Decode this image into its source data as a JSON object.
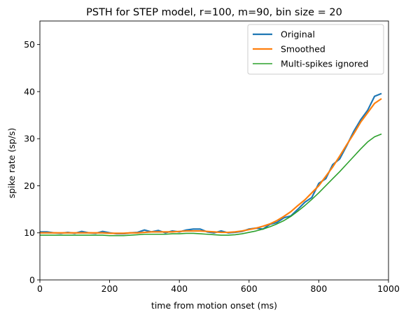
{
  "chart_data": {
    "type": "line",
    "title": "PSTH for STEP model, r=100, m=90, bin size = 20",
    "xlabel": "time from motion onset (ms)",
    "ylabel": "spike rate (sp/s)",
    "xlim": [
      0,
      1000
    ],
    "ylim": [
      0,
      55
    ],
    "xticks": [
      0,
      200,
      400,
      600,
      800,
      1000
    ],
    "yticks": [
      0,
      10,
      20,
      30,
      40,
      50
    ],
    "grid": false,
    "legend_position": "top-right",
    "x": [
      0,
      20,
      40,
      60,
      80,
      100,
      120,
      140,
      160,
      180,
      200,
      220,
      240,
      260,
      280,
      300,
      320,
      340,
      360,
      380,
      400,
      420,
      440,
      460,
      480,
      500,
      520,
      540,
      560,
      580,
      600,
      620,
      640,
      660,
      680,
      700,
      720,
      740,
      760,
      780,
      800,
      820,
      840,
      860,
      880,
      900,
      920,
      940,
      960,
      980
    ],
    "series": [
      {
        "name": "Original",
        "color": "#1f77b4",
        "values": [
          10.2,
          10.2,
          10.0,
          9.9,
          10.1,
          9.9,
          10.3,
          10.0,
          9.9,
          10.3,
          10.0,
          9.8,
          9.8,
          10.0,
          10.1,
          10.6,
          10.2,
          10.5,
          10.0,
          10.4,
          10.2,
          10.6,
          10.8,
          10.8,
          10.2,
          10.0,
          10.4,
          10.0,
          10.1,
          10.3,
          10.8,
          11.0,
          10.8,
          11.8,
          12.2,
          13.2,
          13.6,
          15.0,
          16.5,
          17.5,
          20.5,
          21.5,
          24.5,
          25.7,
          28.5,
          31.5,
          34.0,
          36.0,
          39.0,
          39.6
        ]
      },
      {
        "name": "Smoothed",
        "color": "#ff7f0e",
        "values": [
          10.0,
          10.0,
          10.0,
          10.0,
          10.0,
          10.0,
          10.0,
          10.0,
          10.0,
          10.0,
          9.9,
          9.9,
          9.9,
          10.0,
          10.0,
          10.1,
          10.2,
          10.2,
          10.2,
          10.2,
          10.3,
          10.4,
          10.4,
          10.4,
          10.3,
          10.2,
          10.1,
          10.1,
          10.2,
          10.4,
          10.7,
          11.0,
          11.4,
          11.9,
          12.6,
          13.5,
          14.5,
          15.8,
          17.0,
          18.5,
          20.0,
          22.0,
          24.0,
          26.3,
          28.7,
          31.0,
          33.5,
          35.5,
          37.5,
          38.5
        ]
      },
      {
        "name": "Multi-spikes ignored",
        "color": "#2ca02c",
        "values": [
          9.5,
          9.5,
          9.5,
          9.5,
          9.5,
          9.5,
          9.5,
          9.5,
          9.5,
          9.5,
          9.4,
          9.4,
          9.4,
          9.5,
          9.6,
          9.7,
          9.7,
          9.7,
          9.7,
          9.8,
          9.8,
          9.9,
          9.9,
          9.8,
          9.7,
          9.6,
          9.5,
          9.5,
          9.6,
          9.8,
          10.1,
          10.4,
          10.8,
          11.3,
          11.9,
          12.6,
          13.5,
          14.6,
          15.8,
          17.1,
          18.5,
          20.0,
          21.5,
          23.0,
          24.6,
          26.2,
          27.8,
          29.3,
          30.4,
          31.0
        ]
      }
    ]
  }
}
